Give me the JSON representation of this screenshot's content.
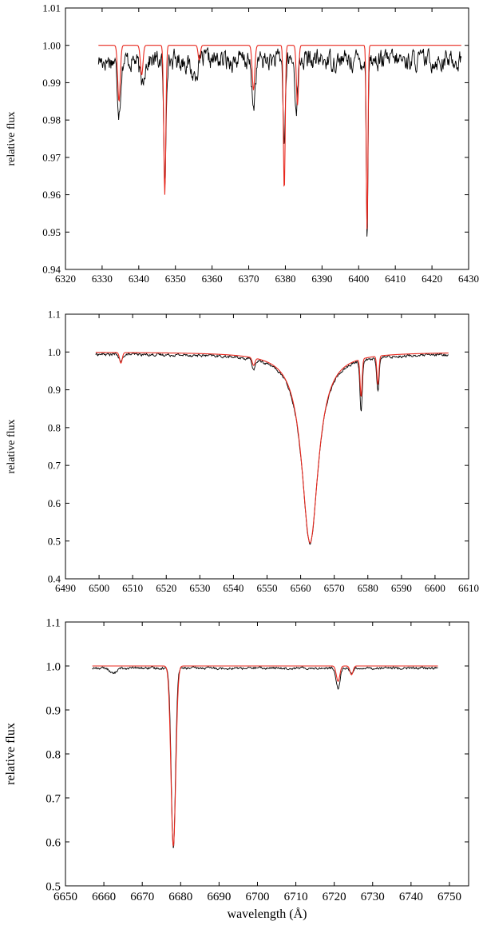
{
  "chart_data": [
    {
      "type": "line",
      "xlabel": "",
      "ylabel": "relative flux",
      "xlim": [
        6320,
        6430
      ],
      "ylim": [
        0.94,
        1.01
      ],
      "xticks": [
        "6320",
        "6330",
        "6340",
        "6350",
        "6360",
        "6370",
        "6380",
        "6390",
        "6400",
        "6410",
        "6420",
        "6430"
      ],
      "yticks": [
        "0.94",
        "0.95",
        "0.96",
        "0.97",
        "0.98",
        "0.99",
        "1.00",
        "1.01"
      ],
      "colors": {
        "observed": "#000000",
        "model": "#e8281e"
      },
      "observed": {
        "x_range": [
          6329,
          6428
        ],
        "continuum": 0.996,
        "noise": 0.003,
        "lines": [
          [
            6334.6,
            0.013,
            0.45
          ],
          [
            6340.8,
            0.006,
            0.6
          ],
          [
            6347.1,
            0.034,
            0.3
          ],
          [
            6355.0,
            0.004,
            0.9
          ],
          [
            6371.3,
            0.012,
            0.5
          ],
          [
            6379.7,
            0.022,
            0.3
          ],
          [
            6383.0,
            0.012,
            0.4
          ],
          [
            6402.3,
            0.047,
            0.22
          ]
        ]
      },
      "model": {
        "x_range": [
          6329,
          6428
        ],
        "continuum": 1.0,
        "lines": [
          [
            6334.6,
            0.015,
            0.35
          ],
          [
            6340.8,
            0.008,
            0.35
          ],
          [
            6347.1,
            0.04,
            0.28
          ],
          [
            6356.5,
            0.004,
            0.3
          ],
          [
            6371.3,
            0.012,
            0.35
          ],
          [
            6379.7,
            0.039,
            0.25
          ],
          [
            6383.3,
            0.016,
            0.3
          ],
          [
            6402.3,
            0.05,
            0.22
          ]
        ]
      }
    },
    {
      "type": "line",
      "xlabel": "",
      "ylabel": "relative flux",
      "xlim": [
        6490,
        6610
      ],
      "ylim": [
        0.4,
        1.1
      ],
      "xticks": [
        "6490",
        "6500",
        "6510",
        "6520",
        "6530",
        "6540",
        "6550",
        "6560",
        "6570",
        "6580",
        "6590",
        "6600",
        "6610"
      ],
      "yticks": [
        "0.4",
        "0.5",
        "0.6",
        "0.7",
        "0.8",
        "0.9",
        "1.0",
        "1.1"
      ],
      "colors": {
        "observed": "#000000",
        "model": "#e8281e"
      },
      "observed": {
        "x_range": [
          6499,
          6604
        ],
        "continuum": 0.995,
        "noise": 0.004,
        "broad": [
          6562.8,
          0.5,
          3.0
        ],
        "lines": [
          [
            6506.5,
            0.02,
            0.5
          ],
          [
            6546.0,
            0.025,
            0.5
          ],
          [
            6578.0,
            0.13,
            0.35
          ],
          [
            6583.0,
            0.09,
            0.35
          ]
        ]
      },
      "model": {
        "x_range": [
          6499,
          6604
        ],
        "continuum": 1.0,
        "broad": [
          6562.8,
          0.505,
          3.0
        ],
        "lines": [
          [
            6506.5,
            0.028,
            0.4
          ],
          [
            6546.0,
            0.02,
            0.4
          ],
          [
            6578.0,
            0.1,
            0.3
          ],
          [
            6583.0,
            0.075,
            0.3
          ]
        ]
      }
    },
    {
      "type": "line",
      "xlabel": "wavelength (Å)",
      "ylabel": "relative flux",
      "xlim": [
        6650,
        6755
      ],
      "ylim": [
        0.5,
        1.1
      ],
      "xticks": [
        "6650",
        "6660",
        "6670",
        "6680",
        "6690",
        "6700",
        "6710",
        "6720",
        "6730",
        "6740",
        "6750"
      ],
      "yticks": [
        "0.5",
        "0.6",
        "0.7",
        "0.8",
        "0.9",
        "1.0",
        "1.1"
      ],
      "colors": {
        "observed": "#000000",
        "model": "#e8281e"
      },
      "observed": {
        "x_range": [
          6657,
          6747
        ],
        "continuum": 0.995,
        "noise": 0.003,
        "lines": [
          [
            6678.1,
            0.41,
            0.55
          ],
          [
            6662.5,
            0.012,
            0.8
          ],
          [
            6721.0,
            0.045,
            0.5
          ],
          [
            6724.5,
            0.01,
            0.5
          ]
        ]
      },
      "model": {
        "x_range": [
          6657,
          6747
        ],
        "continuum": 1.0,
        "lines": [
          [
            6678.1,
            0.41,
            0.62
          ],
          [
            6721.0,
            0.035,
            0.45
          ],
          [
            6724.5,
            0.02,
            0.4
          ]
        ]
      }
    }
  ]
}
